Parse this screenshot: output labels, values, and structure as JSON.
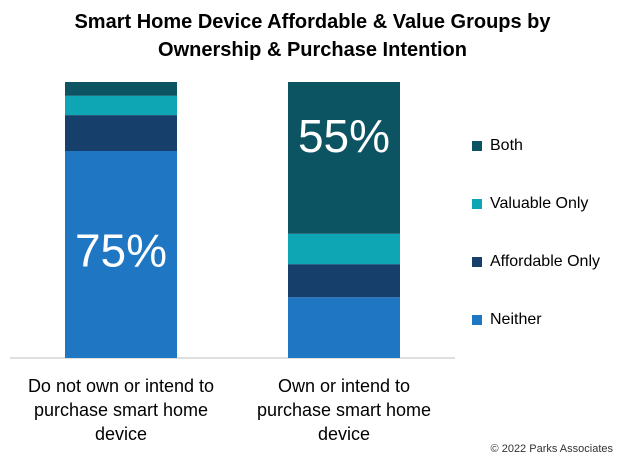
{
  "title_line1": "Smart Home Device Affordable & Value Groups by",
  "title_line2": "Ownership & Purchase Intention",
  "copyright": "© 2022 Parks Associates",
  "colors": {
    "Both": "#0d5463",
    "Valuable Only": "#0ea5b5",
    "Affordable Only": "#173f6b",
    "Neither": "#1f77c4"
  },
  "chart_data": {
    "type": "bar",
    "stacked": true,
    "percent_stacked": true,
    "categories": [
      [
        "Do not own or intend to",
        "purchase smart home",
        "device"
      ],
      [
        "Own or intend to",
        "purchase smart home",
        "device"
      ]
    ],
    "series": [
      {
        "name": "Neither",
        "values": [
          75,
          22
        ]
      },
      {
        "name": "Affordable Only",
        "values": [
          13,
          12
        ]
      },
      {
        "name": "Valuable Only",
        "values": [
          7,
          11
        ]
      },
      {
        "name": "Both",
        "values": [
          5,
          55
        ]
      }
    ],
    "data_labels": [
      {
        "category_index": 0,
        "series": "Neither",
        "text": "75%"
      },
      {
        "category_index": 1,
        "series": "Both",
        "text": "55%"
      }
    ],
    "ylim": [
      0,
      100
    ],
    "legend_order": [
      "Both",
      "Valuable Only",
      "Affordable Only",
      "Neither"
    ],
    "legend_position": "right"
  }
}
